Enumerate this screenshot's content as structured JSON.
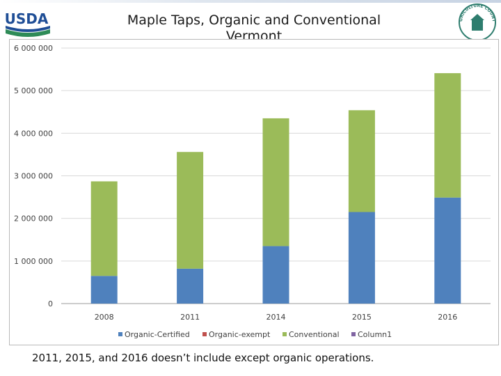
{
  "brand": {
    "usda_logo_text": "USDA",
    "seal_text": "AGRICULTURE COUNTS"
  },
  "colors": {
    "organic_certified": "#4f81bd",
    "organic_exempt": "#c0504d",
    "conventional": "#9bbb59",
    "column1": "#8064a2",
    "usda_blue": "#1f4e96",
    "usda_green": "#2e8b57"
  },
  "chart_data": {
    "type": "bar",
    "stacked": true,
    "title": "Maple Taps, Organic and Conventional Vermont",
    "categories": [
      "2008",
      "2011",
      "2014",
      "2015",
      "2016"
    ],
    "series": [
      {
        "name": "Organic-Certified",
        "values": [
          650000,
          820000,
          1350000,
          2150000,
          2490000
        ]
      },
      {
        "name": "Organic-exempt",
        "values": [
          0,
          0,
          0,
          0,
          0
        ]
      },
      {
        "name": "Conventional",
        "values": [
          2220000,
          2740000,
          3000000,
          2390000,
          2920000
        ]
      },
      {
        "name": "Column1",
        "values": [
          0,
          0,
          0,
          0,
          0
        ]
      }
    ],
    "ylim": [
      0,
      6000000
    ],
    "yticks": [
      "0",
      "1 000 000",
      "2 000 000",
      "3 000 000",
      "4 000 000",
      "5 000 000",
      "6 000 000"
    ],
    "grid": true,
    "legend": "bottom",
    "xlabel": "",
    "ylabel": ""
  },
  "footnote": "2011, 2015, and 2016  doesn’t include except organic operations."
}
